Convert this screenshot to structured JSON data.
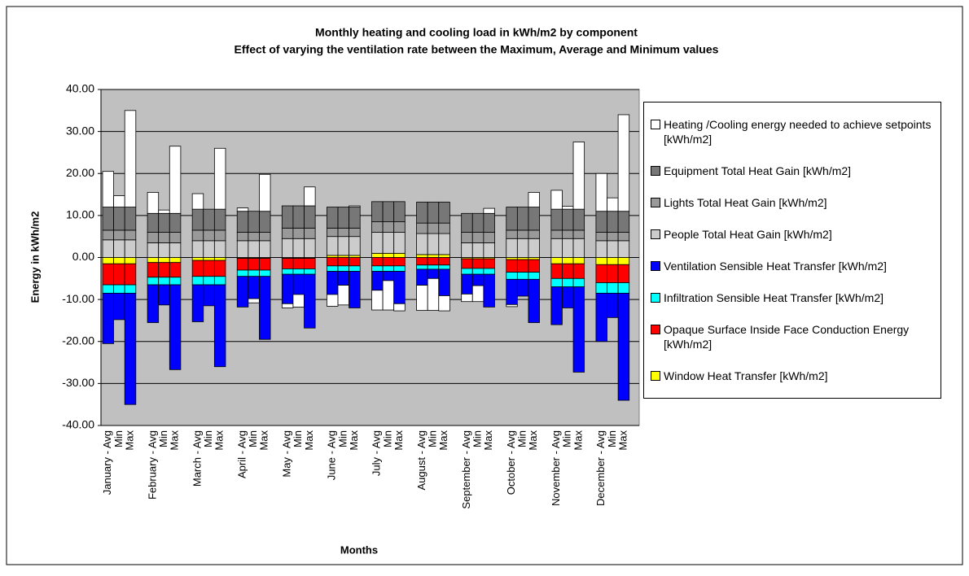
{
  "chart_data": {
    "type": "stacked-bar",
    "title": "Monthly heating and cooling load in kWh/m2 by component",
    "subtitle": "Effect of varying the ventilation rate between the Maximum, Average and Minimum values",
    "y_label": "Energy in kWh/m2",
    "x_label": "Months",
    "categories": [
      "January - Avg",
      "Min",
      "Max",
      "February - Avg",
      "Min",
      "Max",
      "March - Avg",
      "Min",
      "Max",
      "April - Avg",
      "Min",
      "Max",
      "May - Avg",
      "Min",
      "Max",
      "June - Avg",
      "Min",
      "Max",
      "July - Avg",
      "Min",
      "Max",
      "August - Avg",
      "Min",
      "Max",
      "September - Avg",
      "Min",
      "Max",
      "October - Avg",
      "Min",
      "Max",
      "November - Avg",
      "Min",
      "Max",
      "December - Avg",
      "Min",
      "Max"
    ],
    "ylim": [
      -40,
      40
    ],
    "yticks": [
      {
        "value": -40,
        "label": "-40.00"
      },
      {
        "value": -30,
        "label": "-30.00"
      },
      {
        "value": -20,
        "label": "-20.00"
      },
      {
        "value": -10,
        "label": "-10.00"
      },
      {
        "value": 0,
        "label": "0.00"
      },
      {
        "value": 10,
        "label": "10.00"
      },
      {
        "value": 20,
        "label": "20.00"
      },
      {
        "value": 30,
        "label": "30.00"
      },
      {
        "value": 40,
        "label": "40.00"
      }
    ],
    "grid": true,
    "plot_background": "#c0c0c0",
    "legend_position": "right",
    "series": [
      {
        "name": "Heating /Cooling energy needed to achieve setpoints [kWh/m2]",
        "color": "#ffffff",
        "values": [
          8.5,
          2.7,
          23,
          5,
          0.8,
          16,
          3.7,
          0,
          14.5,
          0.8,
          -1,
          8.8,
          -1,
          -3,
          4.5,
          -2.8,
          -4.7,
          0.3,
          -4.7,
          -7,
          -1.7,
          -6,
          -7.6,
          -3.6,
          -1.8,
          -3.8,
          1.2,
          -0.5,
          0,
          3.5,
          4.5,
          0.7,
          16,
          9,
          3.2,
          23
        ]
      },
      {
        "name": "Equipment Total Heat Gain [kWh/m2]",
        "color": "#777777",
        "values": [
          5.5,
          5.5,
          5.5,
          4.5,
          4.5,
          4.5,
          5,
          5,
          5,
          5,
          5,
          5,
          5.3,
          5.3,
          5.3,
          5,
          5,
          5,
          4.8,
          4.8,
          4.8,
          5,
          5,
          5,
          4.5,
          4.5,
          4.5,
          5.5,
          5.5,
          5.5,
          5,
          5,
          5,
          5,
          5,
          5
        ]
      },
      {
        "name": "Lights Total Heat Gain [kWh/m2]",
        "color": "#999999",
        "values": [
          2.3,
          2.3,
          2.3,
          2.5,
          2.5,
          2.5,
          2.5,
          2.5,
          2.5,
          2,
          2,
          2,
          2.5,
          2.5,
          2.5,
          2,
          2,
          2,
          2.5,
          2.5,
          2.5,
          2.5,
          2.5,
          2.5,
          2.5,
          2.5,
          2.5,
          2,
          2,
          2,
          2,
          2,
          2,
          2,
          2,
          2
        ]
      },
      {
        "name": "People Total Heat Gain [kWh/m2]",
        "color": "#cccccc",
        "values": [
          4.2,
          4.2,
          4.2,
          3.5,
          3.5,
          3.5,
          4,
          4,
          4,
          4,
          4,
          4,
          4.5,
          4.5,
          4.5,
          4.5,
          4.5,
          4.5,
          5,
          5,
          5,
          5,
          5,
          5,
          3.5,
          3.5,
          3.5,
          4.5,
          4.5,
          4.5,
          4.5,
          4.5,
          4.5,
          4,
          4,
          4
        ]
      },
      {
        "name": "Ventilation Sensible Heat Transfer [kWh/m2]",
        "color": "#0000ff",
        "values": [
          -12,
          -6.3,
          -26.5,
          -9,
          -4.8,
          -20.2,
          -8.8,
          -5,
          -19.5,
          -7.3,
          -5.3,
          -15,
          -7,
          -4.8,
          -12.8,
          -5.5,
          -3.3,
          -8.7,
          -4.5,
          -2.2,
          -7.7,
          -3.8,
          -2.2,
          -6.3,
          -4.7,
          -2.7,
          -7.8,
          -6,
          -4,
          -10.3,
          -9,
          -5,
          -20.3,
          -11.5,
          -5.8,
          -25.5
        ]
      },
      {
        "name": "Infiltration Sensible Heat Transfer [kWh/m2]",
        "color": "#00ffff",
        "values": [
          -2,
          -2,
          -2,
          -1.8,
          -1.8,
          -1.8,
          -2,
          -2,
          -2,
          -1.5,
          -1.5,
          -1.5,
          -1.3,
          -1.3,
          -1.3,
          -1.3,
          -1.3,
          -1.3,
          -1.3,
          -1.3,
          -1.3,
          -1,
          -1,
          -1,
          -1.4,
          -1.4,
          -1.4,
          -1.7,
          -1.7,
          -1.7,
          -2,
          -2,
          -2,
          -2.5,
          -2.5,
          -2.5
        ]
      },
      {
        "name": "Opaque Surface Inside Face Conduction Energy [kWh/m2]",
        "color": "#ff0000",
        "values": [
          -5,
          -5,
          -5,
          -3.5,
          -3.5,
          -3.5,
          -3.8,
          -3.8,
          -3.8,
          -2.8,
          -2.8,
          -2.8,
          -2.5,
          -2.5,
          -2.5,
          -2,
          -2,
          -2,
          -2,
          -2,
          -2,
          -1.8,
          -1.8,
          -1.8,
          -2.3,
          -2.3,
          -2.3,
          -3,
          -3,
          -3,
          -3.5,
          -3.5,
          -3.5,
          -4.3,
          -4.3,
          -4.3
        ]
      },
      {
        "name": "Window Heat Transfer [kWh/m2]",
        "color": "#ffff00",
        "values": [
          -1.5,
          -1.5,
          -1.5,
          -1.2,
          -1.2,
          -1.2,
          -0.7,
          -0.7,
          -0.7,
          -0.2,
          -0.2,
          -0.2,
          -0.2,
          -0.2,
          -0.2,
          0.5,
          0.5,
          0.5,
          1,
          1,
          1,
          0.7,
          0.7,
          0.7,
          -0.3,
          -0.3,
          -0.3,
          -0.5,
          -0.5,
          -0.5,
          -1.5,
          -1.5,
          -1.5,
          -1.7,
          -1.7,
          -1.7
        ]
      }
    ]
  }
}
